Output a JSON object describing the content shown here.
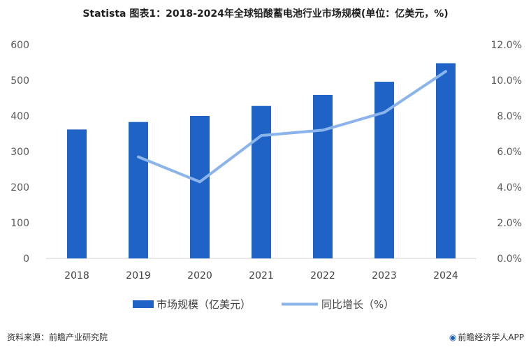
{
  "page": {
    "title": "Statista 图表1：2018-2024年全球铅酸蓄电池行业市场规模(单位：亿美元，%)",
    "source": "资料来源：前瞻产业研究院",
    "brand": "前瞻经济学人APP",
    "brand_icon": "logo-icon"
  },
  "chart_data": {
    "type": "bar",
    "categories": [
      "2018",
      "2019",
      "2020",
      "2021",
      "2022",
      "2023",
      "2024"
    ],
    "series": [
      {
        "name": "市场规模（亿美元）",
        "type": "bar",
        "axis": "left",
        "color": "#1f63c6",
        "values": [
          362,
          383,
          400,
          428,
          459,
          496,
          548
        ]
      },
      {
        "name": "同比增长（%）",
        "type": "line",
        "axis": "right",
        "color": "#8ab4ea",
        "values": [
          null,
          5.7,
          4.3,
          6.9,
          7.2,
          8.2,
          10.5
        ]
      }
    ],
    "y_left": {
      "min": 0,
      "max": 600,
      "ticks": [
        "0",
        "100",
        "200",
        "300",
        "400",
        "500",
        "600"
      ]
    },
    "y_right": {
      "min": 0,
      "max": 12,
      "ticks": [
        "0.0%",
        "2.0%",
        "4.0%",
        "6.0%",
        "8.0%",
        "10.0%",
        "12.0%"
      ]
    },
    "grid": false,
    "legend": "bottom"
  }
}
